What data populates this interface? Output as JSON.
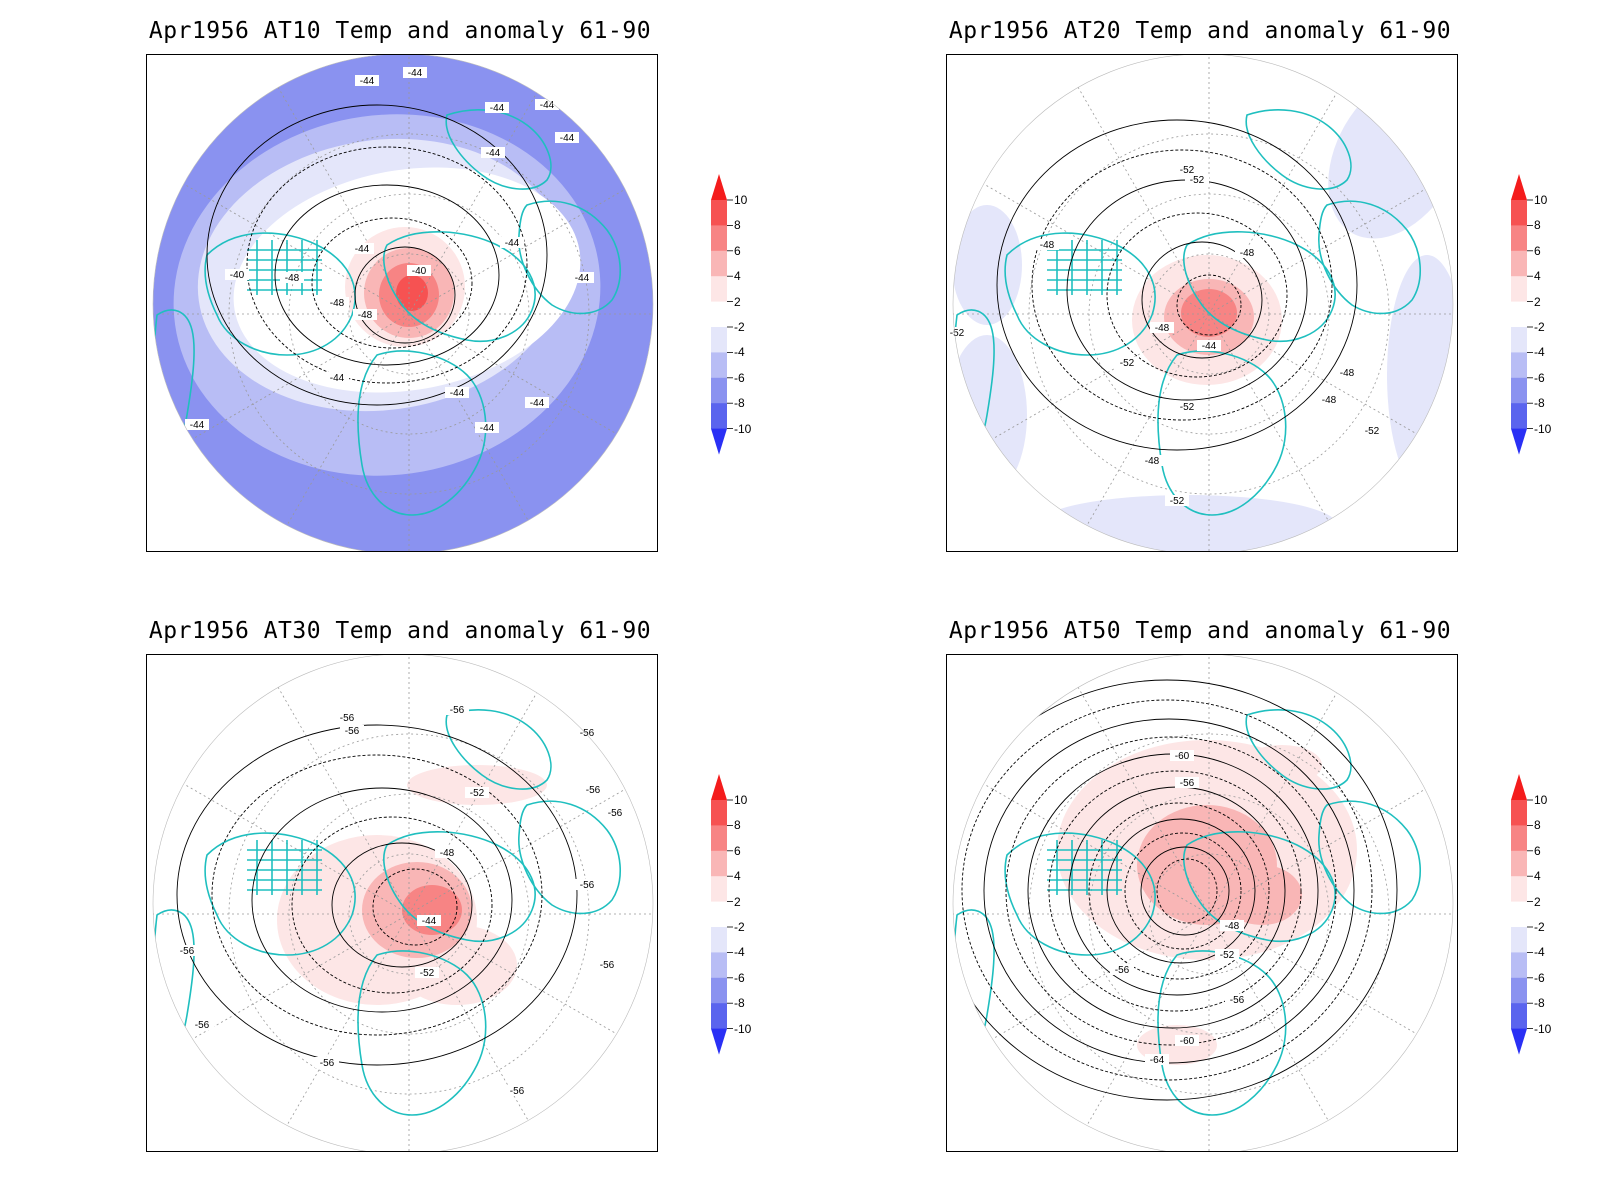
{
  "panels": [
    {
      "title": "Apr1956 AT10 Temp and anomaly 61-90",
      "contour_labels": [
        "-44",
        "-44",
        "-44",
        "-44",
        "-44",
        "-44",
        "-44",
        "-40",
        "-48",
        "-48",
        "-48",
        "-40",
        "-44",
        "-44",
        "-44",
        "-44",
        "-44",
        "-44",
        "-44"
      ]
    },
    {
      "title": "Apr1956 AT20 Temp and anomaly 61-90",
      "contour_labels": [
        "-52",
        "-52",
        "-48",
        "-48",
        "-52",
        "-48",
        "-44",
        "-52",
        "-48",
        "-48",
        "-52",
        "-52",
        "-48",
        "-52"
      ]
    },
    {
      "title": "Apr1956 AT30 Temp and anomaly 61-90",
      "contour_labels": [
        "-56",
        "-56",
        "-56",
        "-56",
        "-56",
        "-56",
        "-52",
        "-48",
        "-56",
        "-44",
        "-52",
        "-56",
        "-56",
        "-56",
        "-56",
        "-56"
      ]
    },
    {
      "title": "Apr1956 AT50 Temp and anomaly 61-90",
      "contour_labels": [
        "-60",
        "-56",
        "-48",
        "-52",
        "-56",
        "-56",
        "-60",
        "-64"
      ]
    }
  ],
  "colorbar": {
    "labels": [
      "10",
      "8",
      "6",
      "4",
      "2",
      "-2",
      "-4",
      "-6",
      "-8",
      "-10"
    ],
    "colors": [
      "#f41c1c",
      "#f65252",
      "#f78484",
      "#f9b6b6",
      "#fde6e6",
      "#ffffff",
      "#e4e6fa",
      "#b8bdf5",
      "#8a92f0",
      "#5a64ee",
      "#2a30f5"
    ]
  },
  "coastline_color": "#1fbfbf"
}
